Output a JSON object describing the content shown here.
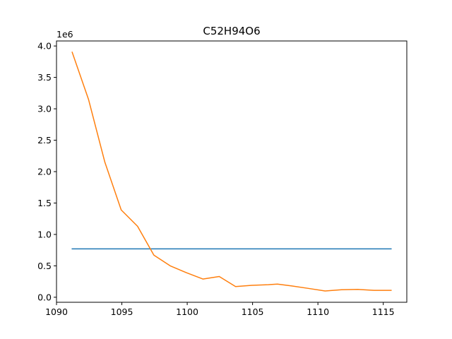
{
  "chart_data": {
    "type": "line",
    "title": "C52H94O6",
    "xlabel": "",
    "ylabel": "",
    "y_offset_label": "1e6",
    "xlim": [
      1090,
      1116.8
    ],
    "ylim": [
      -0.08,
      4.08
    ],
    "y_scale_factor": 1000000,
    "grid": false,
    "x_ticks": [
      1090,
      1095,
      1100,
      1105,
      1110,
      1115
    ],
    "y_ticks": [
      0.0,
      0.5,
      1.0,
      1.5,
      2.0,
      2.5,
      3.0,
      3.5,
      4.0
    ],
    "x_tick_labels": [
      "1090",
      "1095",
      "1100",
      "1105",
      "1110",
      "1115"
    ],
    "y_tick_labels": [
      "0.0",
      "0.5",
      "1.0",
      "1.5",
      "2.0",
      "2.5",
      "3.0",
      "3.5",
      "4.0"
    ],
    "series": [
      {
        "color": "#1f77b4",
        "x": [
          1091.2,
          1115.6
        ],
        "y": [
          0.77,
          0.77
        ]
      },
      {
        "color": "#ff7f0e",
        "x": [
          1091.2,
          1092.45,
          1093.7,
          1094.95,
          1096.2,
          1097.45,
          1098.7,
          1099.95,
          1101.2,
          1102.45,
          1103.7,
          1104.95,
          1106.2,
          1106.9,
          1108.0,
          1109.3,
          1110.55,
          1111.8,
          1113.05,
          1114.3,
          1115.6
        ],
        "y": [
          3.9,
          3.15,
          2.15,
          1.39,
          1.13,
          0.67,
          0.5,
          0.39,
          0.29,
          0.33,
          0.17,
          0.19,
          0.2,
          0.21,
          0.18,
          0.14,
          0.1,
          0.12,
          0.125,
          0.11,
          0.11
        ]
      }
    ]
  }
}
